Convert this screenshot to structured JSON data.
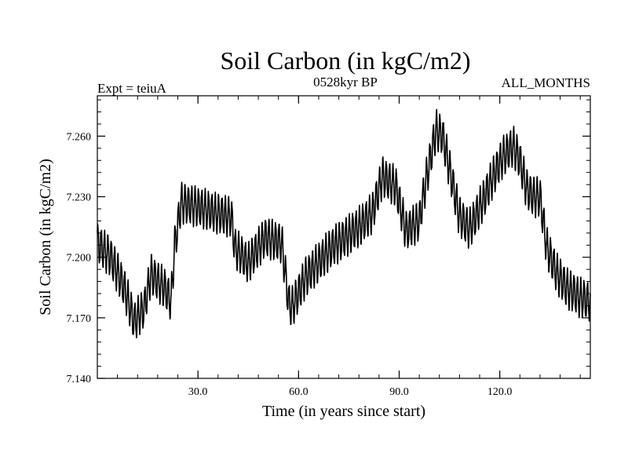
{
  "chart_data": {
    "type": "line",
    "title": "Soil Carbon (in kgC/m2)",
    "subtitle_left": "Expt = teiuA",
    "subtitle_center": "0528kyr BP",
    "subtitle_right": "ALL_MONTHS",
    "xlabel": "Time (in years since start)",
    "ylabel": "Soil Carbon (in kgC/m2)",
    "xlim": [
      0,
      147
    ],
    "ylim": [
      7.14,
      7.28
    ],
    "xticks": [
      30,
      60,
      90,
      120
    ],
    "xtick_labels": [
      "30.0",
      "60.0",
      "90.0",
      "120.0"
    ],
    "yticks": [
      7.14,
      7.17,
      7.2,
      7.23,
      7.26
    ],
    "ytick_labels": [
      "7.140",
      "7.170",
      "7.200",
      "7.230",
      "7.260"
    ],
    "series": [
      {
        "name": "Soil Carbon",
        "color": "#000000",
        "seasonal_amplitude": 0.009,
        "trend_x": [
          0,
          4,
          8,
          11,
          14,
          16,
          18,
          20,
          22,
          23,
          25,
          30,
          35,
          40,
          41,
          45,
          50,
          55,
          57,
          58,
          62,
          70,
          78,
          82,
          85,
          89,
          92,
          96,
          98,
          101,
          103,
          106,
          108,
          111,
          115,
          118,
          121,
          124,
          126,
          128,
          130,
          132,
          134,
          137,
          140,
          144,
          147
        ],
        "trend_y": [
          7.207,
          7.2,
          7.185,
          7.168,
          7.175,
          7.192,
          7.188,
          7.185,
          7.178,
          7.205,
          7.227,
          7.225,
          7.222,
          7.22,
          7.205,
          7.197,
          7.21,
          7.207,
          7.178,
          7.175,
          7.19,
          7.205,
          7.215,
          7.222,
          7.24,
          7.235,
          7.213,
          7.218,
          7.238,
          7.263,
          7.26,
          7.236,
          7.22,
          7.214,
          7.228,
          7.24,
          7.25,
          7.255,
          7.248,
          7.234,
          7.23,
          7.23,
          7.205,
          7.192,
          7.185,
          7.18,
          7.178
        ]
      }
    ]
  }
}
